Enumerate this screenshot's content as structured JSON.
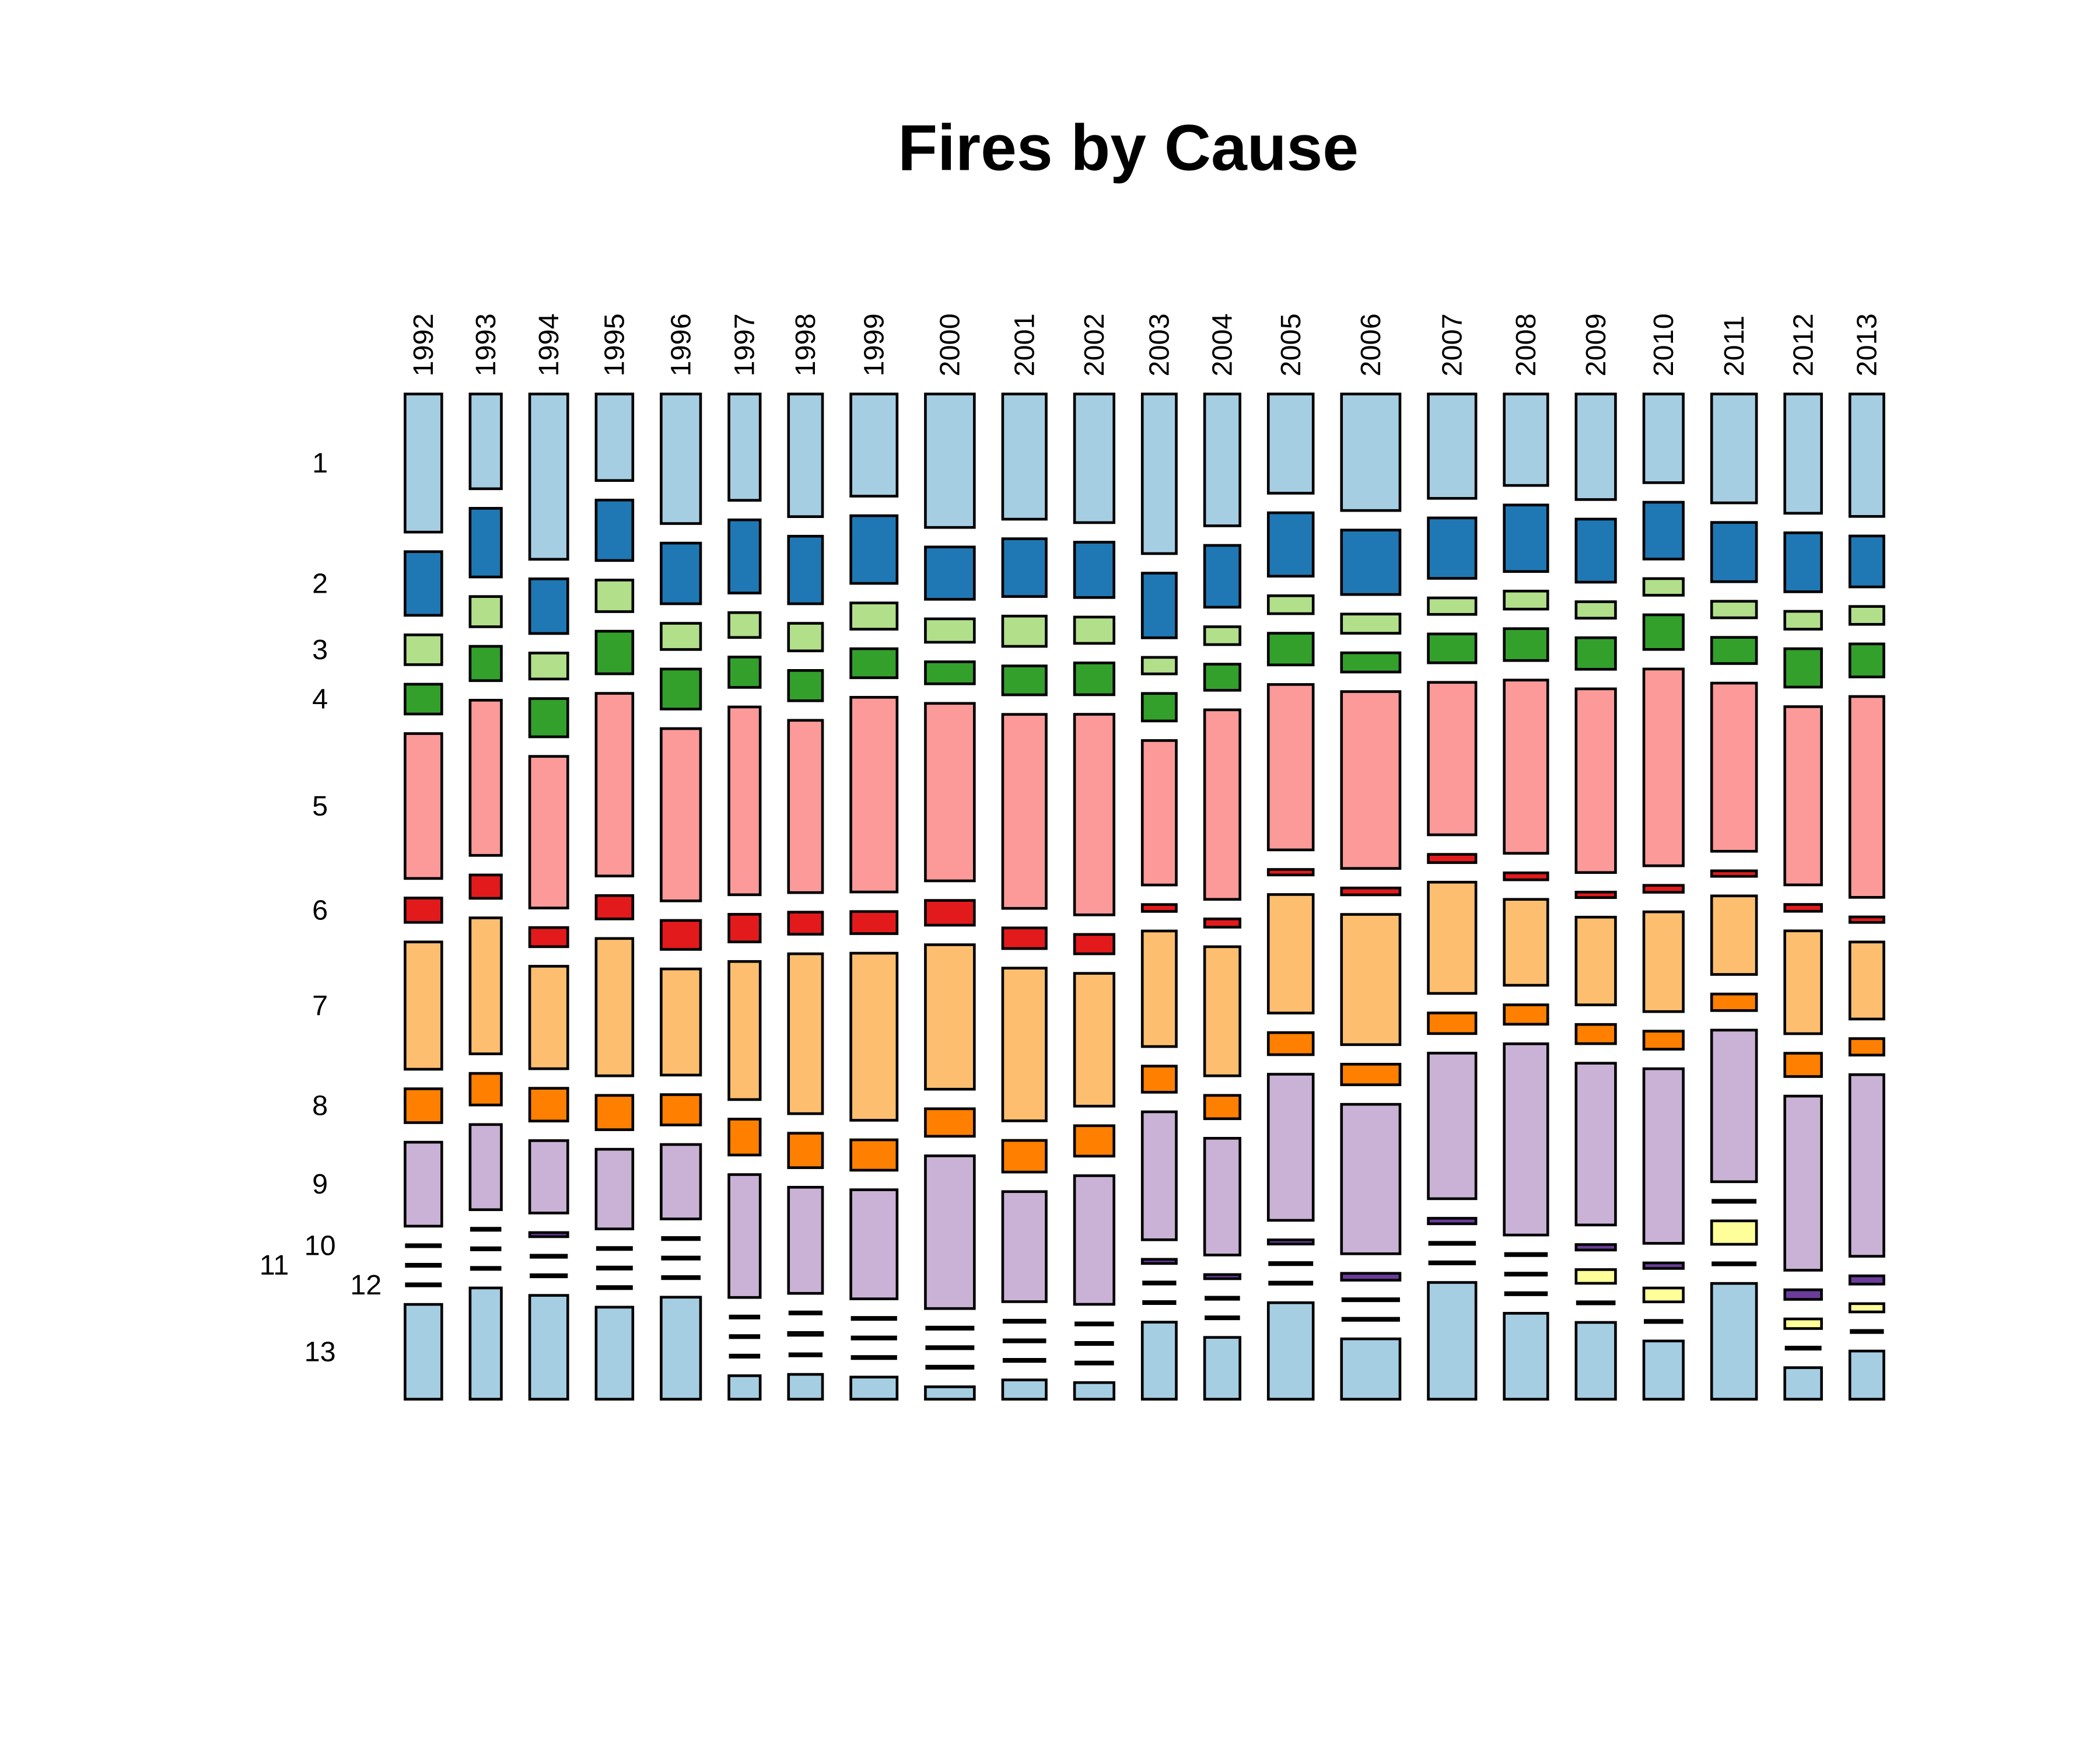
{
  "chart_data": {
    "type": "mosaic",
    "title": "Fires by Cause",
    "xlabel": "",
    "ylabel": "",
    "years": [
      "1992",
      "1993",
      "1994",
      "1995",
      "1996",
      "1997",
      "1998",
      "1999",
      "2000",
      "2001",
      "2002",
      "2003",
      "2004",
      "2005",
      "2006",
      "2007",
      "2008",
      "2009",
      "2010",
      "2011",
      "2012",
      "2013"
    ],
    "year_weights": [
      27,
      23,
      28,
      27,
      29,
      23,
      25,
      34,
      36,
      32,
      29,
      25,
      26,
      33,
      43,
      35,
      32,
      29,
      29,
      33,
      27,
      25
    ],
    "causes": [
      "1",
      "2",
      "3",
      "4",
      "5",
      "6",
      "7",
      "8",
      "9",
      "10",
      "11",
      "12",
      "13"
    ],
    "colors": [
      "#A6CEE3",
      "#1F78B4",
      "#B2DF8A",
      "#33A02C",
      "#FB9A99",
      "#E31A1C",
      "#FDBF6F",
      "#FF7F00",
      "#CAB2D6",
      "#6A3D9A",
      "#FFFF99",
      "#B15928",
      "#A6CEE3"
    ],
    "shares_note_units": "relative share within each year (column)",
    "shares": [
      [
        102,
        47,
        22,
        22,
        107,
        18,
        94,
        25,
        62,
        0,
        0,
        0,
        70
      ],
      [
        69,
        50,
        22,
        25,
        113,
        17,
        99,
        23,
        62,
        0,
        0,
        0,
        81
      ],
      [
        121,
        40,
        19,
        28,
        111,
        14,
        75,
        24,
        53,
        3,
        0,
        0,
        76
      ],
      [
        63,
        44,
        23,
        31,
        133,
        17,
        100,
        25,
        58,
        0,
        0,
        0,
        67
      ],
      [
        94,
        44,
        19,
        29,
        125,
        21,
        77,
        22,
        54,
        0,
        0,
        0,
        74
      ],
      [
        77,
        53,
        18,
        22,
        136,
        20,
        100,
        26,
        89,
        0,
        0,
        0,
        17
      ],
      [
        89,
        49,
        20,
        22,
        125,
        16,
        116,
        25,
        77,
        0,
        2,
        0,
        18
      ],
      [
        74,
        49,
        19,
        21,
        141,
        16,
        121,
        22,
        79,
        0,
        0,
        0,
        16
      ],
      [
        97,
        38,
        17,
        16,
        129,
        18,
        105,
        20,
        111,
        0,
        0,
        0,
        9
      ],
      [
        91,
        42,
        22,
        21,
        141,
        15,
        111,
        23,
        80,
        0,
        0,
        0,
        14
      ],
      [
        93,
        40,
        19,
        23,
        145,
        14,
        96,
        22,
        93,
        0,
        0,
        0,
        12
      ],
      [
        116,
        47,
        12,
        20,
        105,
        5,
        84,
        19,
        93,
        3,
        0,
        0,
        56
      ],
      [
        96,
        45,
        13,
        19,
        138,
        6,
        94,
        17,
        85,
        3,
        0,
        0,
        45
      ],
      [
        72,
        46,
        13,
        23,
        120,
        4,
        86,
        16,
        106,
        3,
        0,
        0,
        70
      ],
      [
        85,
        47,
        14,
        14,
        129,
        5,
        95,
        15,
        109,
        5,
        0,
        0,
        44
      ],
      [
        76,
        44,
        12,
        21,
        111,
        6,
        81,
        15,
        106,
        4,
        0,
        0,
        85
      ],
      [
        66,
        48,
        13,
        23,
        125,
        5,
        62,
        14,
        138,
        0,
        0,
        0,
        62
      ],
      [
        77,
        46,
        12,
        23,
        134,
        4,
        64,
        14,
        118,
        4,
        10,
        0,
        56
      ],
      [
        64,
        41,
        12,
        25,
        142,
        5,
        72,
        13,
        126,
        4,
        10,
        0,
        42
      ],
      [
        79,
        43,
        12,
        19,
        122,
        4,
        57,
        12,
        110,
        0,
        17,
        0,
        84
      ],
      [
        87,
        43,
        13,
        28,
        130,
        5,
        75,
        17,
        127,
        7,
        7,
        0,
        23
      ],
      [
        89,
        37,
        13,
        24,
        146,
        4,
        56,
        12,
        132,
        6,
        6,
        0,
        35
      ]
    ]
  }
}
